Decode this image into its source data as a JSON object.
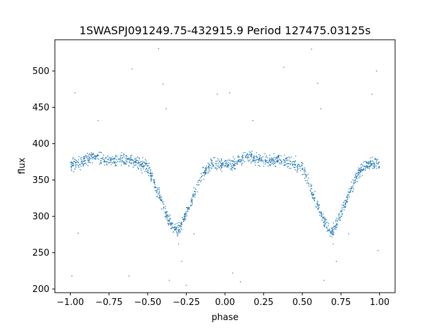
{
  "chart_data": {
    "type": "scatter",
    "title": "1SWASPJ091249.75-432915.9 Period 127475.03125s",
    "xlabel": "phase",
    "ylabel": "flux",
    "xlim": [
      -1.1,
      1.1
    ],
    "ylim": [
      195,
      543
    ],
    "grid": false,
    "color": "#1f77b4",
    "xticks": [
      -1.0,
      -0.75,
      -0.5,
      -0.25,
      0.0,
      0.25,
      0.5,
      0.75,
      1.0
    ],
    "xtick_labels": [
      "−1.00",
      "−0.75",
      "−0.50",
      "−0.25",
      "0.00",
      "0.25",
      "0.50",
      "0.75",
      "1.00"
    ],
    "yticks": [
      200,
      250,
      300,
      350,
      400,
      450,
      500
    ],
    "ytick_labels": [
      "200",
      "250",
      "300",
      "350",
      "400",
      "450",
      "500"
    ],
    "light_curve": {
      "phase": [
        0.0,
        0.05,
        0.1,
        0.15,
        0.2,
        0.25,
        0.3,
        0.35,
        0.4,
        0.45,
        0.5,
        0.53,
        0.56,
        0.6,
        0.63,
        0.66,
        0.68,
        0.7,
        0.72,
        0.75,
        0.8,
        0.85,
        0.9,
        0.95,
        1.0
      ],
      "flux": [
        372,
        371,
        378,
        383,
        379,
        378,
        375,
        378,
        375,
        372,
        368,
        355,
        335,
        315,
        298,
        287,
        282,
        280,
        290,
        305,
        330,
        355,
        370,
        372,
        372
      ]
    },
    "outliers": [
      {
        "x": -0.99,
        "y": 218
      },
      {
        "x": -0.97,
        "y": 470
      },
      {
        "x": -0.95,
        "y": 277
      },
      {
        "x": -0.62,
        "y": 218
      },
      {
        "x": -0.6,
        "y": 503
      },
      {
        "x": -0.43,
        "y": 531
      },
      {
        "x": -0.4,
        "y": 482
      },
      {
        "x": -0.38,
        "y": 448
      },
      {
        "x": -0.36,
        "y": 212
      },
      {
        "x": -0.28,
        "y": 238
      },
      {
        "x": -0.25,
        "y": 205
      },
      {
        "x": -0.2,
        "y": 276
      },
      {
        "x": -0.05,
        "y": 468
      },
      {
        "x": 0.03,
        "y": 470
      },
      {
        "x": 0.05,
        "y": 222
      },
      {
        "x": 0.1,
        "y": 210
      },
      {
        "x": 0.38,
        "y": 505
      },
      {
        "x": 0.56,
        "y": 530
      },
      {
        "x": 0.6,
        "y": 483
      },
      {
        "x": 0.62,
        "y": 448
      },
      {
        "x": 0.64,
        "y": 212
      },
      {
        "x": 0.72,
        "y": 238
      },
      {
        "x": 0.8,
        "y": 276
      },
      {
        "x": 0.95,
        "y": 468
      },
      {
        "x": 0.98,
        "y": 500
      },
      {
        "x": 0.99,
        "y": 253
      },
      {
        "x": -0.82,
        "y": 432
      },
      {
        "x": 0.18,
        "y": 432
      },
      {
        "x": -0.3,
        "y": 262
      },
      {
        "x": 0.7,
        "y": 262
      }
    ]
  }
}
